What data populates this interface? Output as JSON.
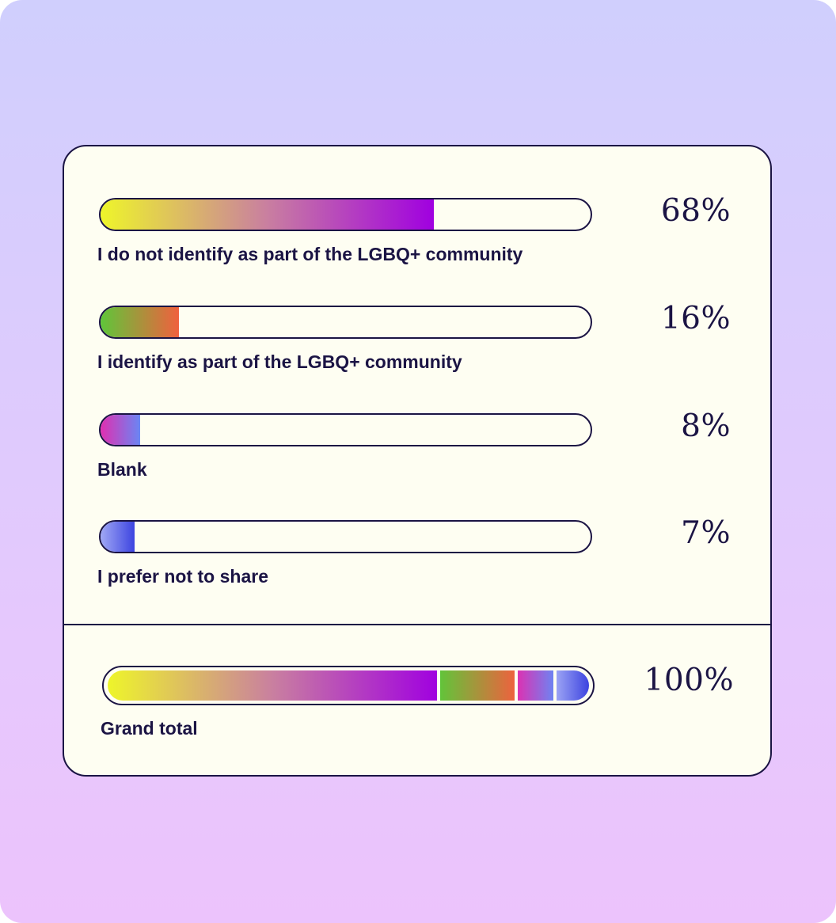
{
  "chart_data": {
    "type": "bar",
    "categories": [
      "I do not identify as part of the LGBQ+ community",
      "I identify as part of the LGBQ+ community",
      "Blank",
      "I prefer not to share"
    ],
    "values": [
      68,
      16,
      8,
      7
    ],
    "value_labels": [
      "68%",
      "16%",
      "8%",
      "7%"
    ],
    "xlim": [
      0,
      100
    ],
    "gradients": [
      [
        "#eef52a",
        "#c97fa0",
        "#a000e0"
      ],
      [
        "#5fc63a",
        "#f0603e"
      ],
      [
        "#e02fb0",
        "#6a86f4"
      ],
      [
        "#a0a8f5",
        "#3d44e0"
      ]
    ],
    "total": {
      "label": "Grand total",
      "value_label": "100%"
    }
  },
  "colors": {
    "ink": "#1b1444",
    "card": "#fefef2",
    "background_top": "#d0cffd",
    "background_bottom": "#ecc3fc"
  }
}
